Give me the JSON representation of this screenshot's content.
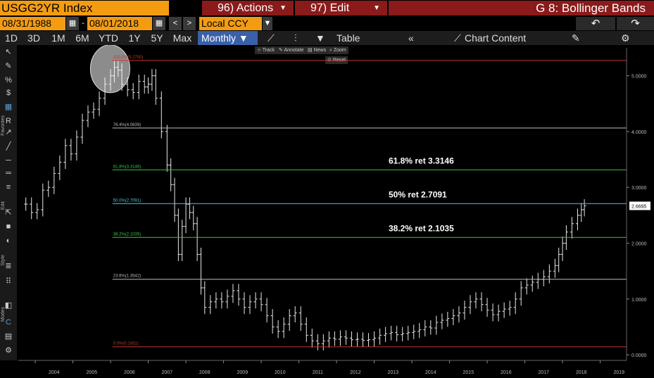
{
  "header": {
    "ticker": "USGG2YR Index",
    "actions_label": "96) Actions",
    "edit_label": "97) Edit",
    "chart_title": "G 8: Bollinger Bands"
  },
  "dates": {
    "start": "08/31/1988",
    "sep": "-",
    "end": "08/01/2018",
    "currency": "Local CCY"
  },
  "ranges": [
    "1D",
    "3D",
    "1M",
    "6M",
    "YTD",
    "1Y",
    "5Y",
    "Max"
  ],
  "period": "Monthly",
  "toolbar": {
    "table_label": "Table",
    "collapse_label": "«",
    "chart_content_label": "Chart Content"
  },
  "chart_tools": {
    "track": "Track",
    "annotate": "Annotate",
    "news": "News",
    "zoom": "Zoom",
    "reset": "Reset"
  },
  "sidebar": {
    "favorites_label": "Favorites",
    "edit_label": "Edit",
    "style_label": "Style",
    "modes_label": "Modes"
  },
  "colors": {
    "ticker_bg": "#f39c12",
    "menu_bg": "#8b1a1a",
    "accent": "#3a60a8"
  },
  "chart_data": {
    "type": "bar",
    "x_ticks": [
      "2004",
      "2005",
      "2006",
      "2007",
      "2008",
      "2009",
      "2010",
      "2011",
      "2012",
      "2013",
      "2014",
      "2015",
      "2016",
      "2017",
      "2018",
      "2019"
    ],
    "y_ticks": [
      "0.0000",
      "1.0000",
      "2.0000",
      "3.0000",
      "4.0000",
      "5.0000"
    ],
    "ylim": [
      -0.1,
      5.5
    ],
    "last_value": "2.6695",
    "fib_levels": [
      {
        "label": "100.0%(5.2750)",
        "value": 5.275,
        "color": "#c0392b"
      },
      {
        "label": "76.4%(4.0639)",
        "value": 4.0639,
        "color": "#bbbbbb"
      },
      {
        "label": "61.8%(3.3146)",
        "value": 3.3146,
        "color": "#2ecc40"
      },
      {
        "label": "50.0%(2.7091)",
        "value": 2.7091,
        "color": "#48c9e0"
      },
      {
        "label": "38.2%(2.1035)",
        "value": 2.1035,
        "color": "#2ecc40"
      },
      {
        "label": "23.6%(1.3542)",
        "value": 1.3542,
        "color": "#bbbbbb"
      },
      {
        "label": "0.0%(0.1431)",
        "value": 0.1431,
        "color": "#c0392b"
      }
    ],
    "annotations": [
      {
        "text": "61.8% ret 3.3146",
        "value": 3.3146
      },
      {
        "text": "50% ret 2.7091",
        "value": 2.7091
      },
      {
        "text": "38.2% ret 2.1035",
        "value": 2.1035
      }
    ],
    "series": [
      {
        "values": [
          {
            "t": 2003.75,
            "v": 2.7
          },
          {
            "t": 2003.9,
            "v": 2.55
          },
          {
            "t": 2004.05,
            "v": 2.6
          },
          {
            "t": 2004.2,
            "v": 2.95
          },
          {
            "t": 2004.35,
            "v": 3.0
          },
          {
            "t": 2004.5,
            "v": 3.25
          },
          {
            "t": 2004.65,
            "v": 3.45
          },
          {
            "t": 2004.8,
            "v": 3.75
          },
          {
            "t": 2004.95,
            "v": 3.6
          },
          {
            "t": 2005.1,
            "v": 3.9
          },
          {
            "t": 2005.25,
            "v": 4.2
          },
          {
            "t": 2005.4,
            "v": 4.35
          },
          {
            "t": 2005.55,
            "v": 4.4
          },
          {
            "t": 2005.7,
            "v": 4.6
          },
          {
            "t": 2005.85,
            "v": 4.85
          },
          {
            "t": 2006.0,
            "v": 5.0
          },
          {
            "t": 2006.1,
            "v": 5.15
          },
          {
            "t": 2006.2,
            "v": 5.1
          },
          {
            "t": 2006.3,
            "v": 4.85
          },
          {
            "t": 2006.45,
            "v": 4.75
          },
          {
            "t": 2006.6,
            "v": 4.7
          },
          {
            "t": 2006.75,
            "v": 4.9
          },
          {
            "t": 2006.9,
            "v": 4.8
          },
          {
            "t": 2007.0,
            "v": 4.85
          },
          {
            "t": 2007.1,
            "v": 5.0
          },
          {
            "t": 2007.2,
            "v": 4.6
          },
          {
            "t": 2007.35,
            "v": 4.0
          },
          {
            "t": 2007.5,
            "v": 3.4
          },
          {
            "t": 2007.6,
            "v": 3.05
          },
          {
            "t": 2007.7,
            "v": 2.5
          },
          {
            "t": 2007.8,
            "v": 1.8
          },
          {
            "t": 2007.9,
            "v": 2.3
          },
          {
            "t": 2008.0,
            "v": 2.7
          },
          {
            "t": 2008.1,
            "v": 2.55
          },
          {
            "t": 2008.2,
            "v": 2.35
          },
          {
            "t": 2008.3,
            "v": 1.8
          },
          {
            "t": 2008.4,
            "v": 1.2
          },
          {
            "t": 2008.5,
            "v": 0.85
          },
          {
            "t": 2008.65,
            "v": 0.95
          },
          {
            "t": 2008.8,
            "v": 1.0
          },
          {
            "t": 2008.95,
            "v": 0.95
          },
          {
            "t": 2009.1,
            "v": 1.05
          },
          {
            "t": 2009.25,
            "v": 1.15
          },
          {
            "t": 2009.4,
            "v": 1.0
          },
          {
            "t": 2009.55,
            "v": 0.85
          },
          {
            "t": 2009.7,
            "v": 0.95
          },
          {
            "t": 2009.85,
            "v": 1.0
          },
          {
            "t": 2010.0,
            "v": 0.9
          },
          {
            "t": 2010.15,
            "v": 0.7
          },
          {
            "t": 2010.3,
            "v": 0.5
          },
          {
            "t": 2010.45,
            "v": 0.42
          },
          {
            "t": 2010.6,
            "v": 0.55
          },
          {
            "t": 2010.75,
            "v": 0.7
          },
          {
            "t": 2010.9,
            "v": 0.75
          },
          {
            "t": 2011.05,
            "v": 0.55
          },
          {
            "t": 2011.2,
            "v": 0.35
          },
          {
            "t": 2011.35,
            "v": 0.25
          },
          {
            "t": 2011.5,
            "v": 0.2
          },
          {
            "t": 2011.65,
            "v": 0.25
          },
          {
            "t": 2011.8,
            "v": 0.3
          },
          {
            "t": 2011.95,
            "v": 0.28
          },
          {
            "t": 2012.1,
            "v": 0.32
          },
          {
            "t": 2012.25,
            "v": 0.3
          },
          {
            "t": 2012.4,
            "v": 0.27
          },
          {
            "t": 2012.55,
            "v": 0.28
          },
          {
            "t": 2012.7,
            "v": 0.26
          },
          {
            "t": 2012.85,
            "v": 0.27
          },
          {
            "t": 2013.0,
            "v": 0.3
          },
          {
            "t": 2013.15,
            "v": 0.35
          },
          {
            "t": 2013.3,
            "v": 0.38
          },
          {
            "t": 2013.45,
            "v": 0.4
          },
          {
            "t": 2013.6,
            "v": 0.36
          },
          {
            "t": 2013.75,
            "v": 0.38
          },
          {
            "t": 2013.9,
            "v": 0.4
          },
          {
            "t": 2014.05,
            "v": 0.42
          },
          {
            "t": 2014.2,
            "v": 0.45
          },
          {
            "t": 2014.35,
            "v": 0.5
          },
          {
            "t": 2014.5,
            "v": 0.48
          },
          {
            "t": 2014.65,
            "v": 0.58
          },
          {
            "t": 2014.8,
            "v": 0.62
          },
          {
            "t": 2014.95,
            "v": 0.65
          },
          {
            "t": 2015.1,
            "v": 0.7
          },
          {
            "t": 2015.25,
            "v": 0.75
          },
          {
            "t": 2015.4,
            "v": 0.85
          },
          {
            "t": 2015.55,
            "v": 0.95
          },
          {
            "t": 2015.7,
            "v": 1.0
          },
          {
            "t": 2015.85,
            "v": 0.9
          },
          {
            "t": 2016.0,
            "v": 0.8
          },
          {
            "t": 2016.15,
            "v": 0.72
          },
          {
            "t": 2016.3,
            "v": 0.78
          },
          {
            "t": 2016.45,
            "v": 0.82
          },
          {
            "t": 2016.6,
            "v": 0.85
          },
          {
            "t": 2016.75,
            "v": 1.0
          },
          {
            "t": 2016.9,
            "v": 1.2
          },
          {
            "t": 2017.05,
            "v": 1.25
          },
          {
            "t": 2017.2,
            "v": 1.3
          },
          {
            "t": 2017.35,
            "v": 1.35
          },
          {
            "t": 2017.5,
            "v": 1.4
          },
          {
            "t": 2017.65,
            "v": 1.5
          },
          {
            "t": 2017.8,
            "v": 1.6
          },
          {
            "t": 2017.9,
            "v": 1.8
          },
          {
            "t": 2018.0,
            "v": 2.0
          },
          {
            "t": 2018.1,
            "v": 2.2
          },
          {
            "t": 2018.25,
            "v": 2.35
          },
          {
            "t": 2018.4,
            "v": 2.5
          },
          {
            "t": 2018.5,
            "v": 2.6
          },
          {
            "t": 2018.58,
            "v": 2.6695
          }
        ]
      }
    ]
  }
}
